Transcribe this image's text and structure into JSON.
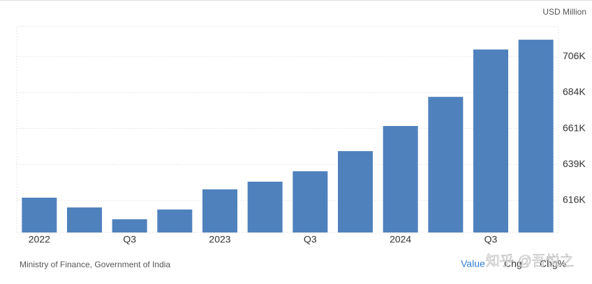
{
  "unit_label": "USD Million",
  "chart_data": {
    "type": "bar",
    "categories": [
      "2022",
      null,
      "Q3",
      null,
      "2023",
      null,
      "Q3",
      null,
      "2024",
      null,
      "Q3",
      null
    ],
    "values": [
      618000,
      611900,
      604500,
      610600,
      623200,
      628000,
      634500,
      647100,
      662800,
      681000,
      710600,
      716700
    ],
    "color": "#4f81bd",
    "ylim": [
      596250,
      725000
    ],
    "yticks": [
      {
        "value": 616250,
        "label": "616K"
      },
      {
        "value": 638750,
        "label": "639K"
      },
      {
        "value": 661250,
        "label": "661K"
      },
      {
        "value": 683750,
        "label": "684K"
      },
      {
        "value": 706250,
        "label": "706K"
      }
    ],
    "grid": true
  },
  "footer": {
    "source": "Ministry of Finance, Government of India",
    "buttons": [
      "Value",
      "Chg",
      "Chg%"
    ],
    "watermark": "知乎 @吾悦之"
  }
}
